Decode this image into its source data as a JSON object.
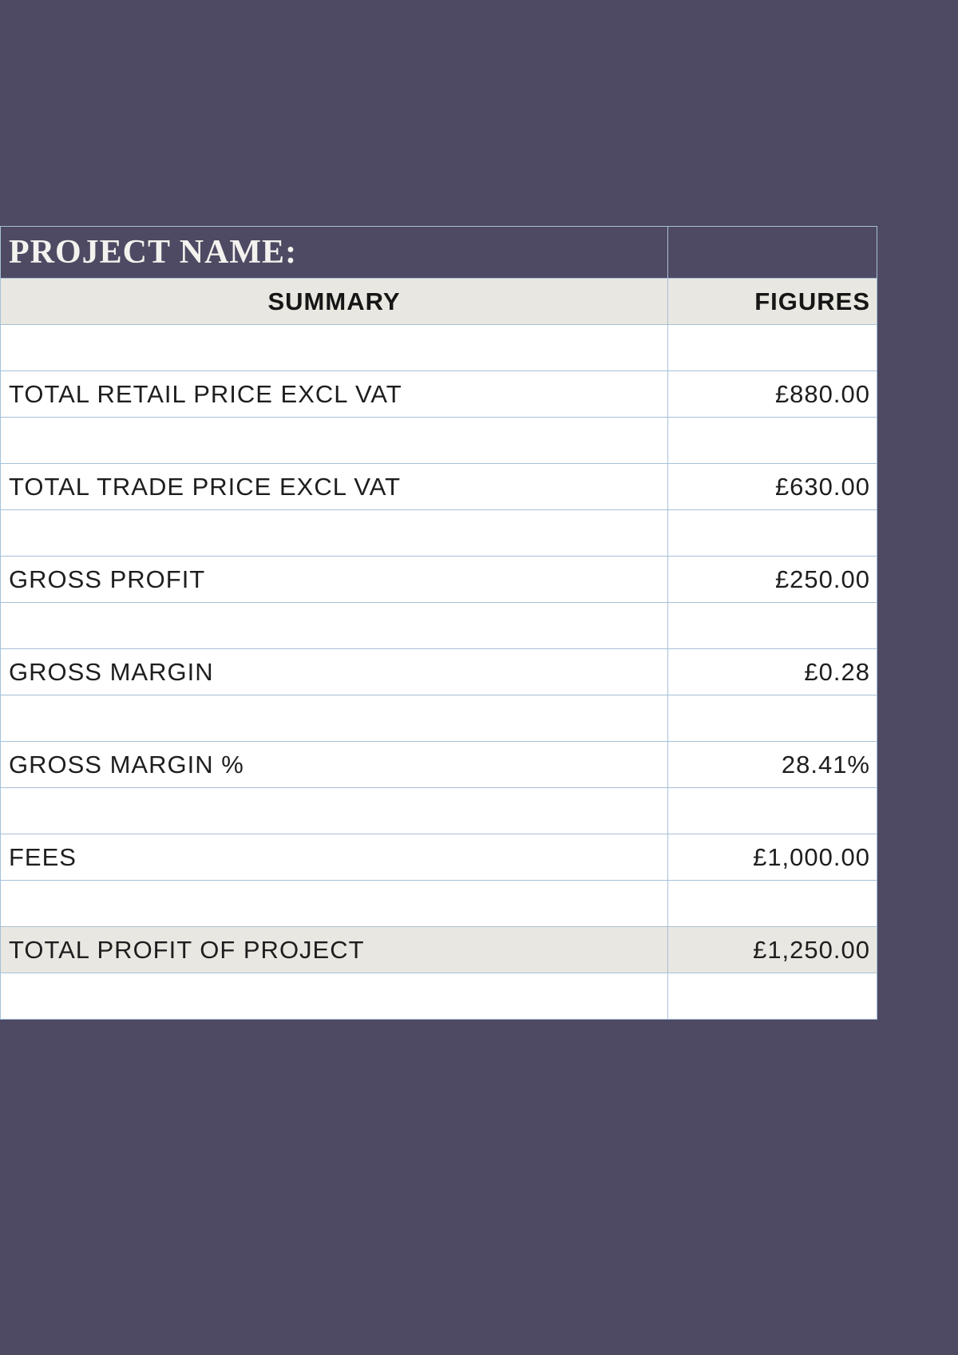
{
  "colors": {
    "page_background": "#4e4a63",
    "cell_background": "#ffffff",
    "header_background": "#e9e7e1",
    "total_row_background": "#e9e7e1",
    "grid_border": "#a7c0d7",
    "project_name_text": "#f4f2ee",
    "body_text": "#1e1e1e"
  },
  "project": {
    "label": "PROJECT NAME:"
  },
  "table": {
    "headers": [
      "SUMMARY",
      "FIGURES"
    ],
    "rows": [
      {
        "label": "TOTAL RETAIL PRICE EXCL VAT",
        "value": "£880.00"
      },
      {
        "label": "TOTAL TRADE PRICE EXCL VAT",
        "value": "£630.00"
      },
      {
        "label": "GROSS PROFIT",
        "value": "£250.00"
      },
      {
        "label": "GROSS MARGIN",
        "value": "£0.28"
      },
      {
        "label": "GROSS MARGIN %",
        "value": "28.41%"
      },
      {
        "label": "FEES",
        "value": "£1,000.00"
      },
      {
        "label": "TOTAL PROFIT OF PROJECT",
        "value": "£1,250.00"
      }
    ]
  }
}
